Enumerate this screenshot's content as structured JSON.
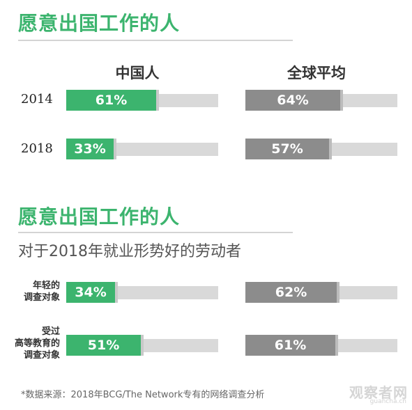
{
  "chart_data": [
    {
      "type": "bar",
      "title": "愿意出国工作的人",
      "series_headers": [
        "中国人",
        "全球平均"
      ],
      "categories": [
        "2014",
        "2018"
      ],
      "series": [
        {
          "name": "中国人",
          "values": [
            61,
            33
          ],
          "labels": [
            "61%",
            "33%"
          ]
        },
        {
          "name": "全球平均",
          "values": [
            64,
            57
          ],
          "labels": [
            "64%",
            "57%"
          ]
        }
      ],
      "ylim": [
        0,
        100
      ]
    },
    {
      "type": "bar",
      "title": "愿意出国工作的人",
      "subtitle": "对于2018年就业形势好的劳动者",
      "categories": [
        "年轻的调查对象",
        "受过高等教育的调查对象"
      ],
      "category_lines": [
        [
          "年轻的",
          "调查对象"
        ],
        [
          "受过",
          "高等教育的",
          "调查对象"
        ]
      ],
      "series": [
        {
          "values": [
            34,
            51
          ],
          "labels": [
            "34%",
            "51%"
          ]
        },
        {
          "values": [
            62,
            61
          ],
          "labels": [
            "62%",
            "61%"
          ]
        }
      ],
      "ylim": [
        0,
        100
      ]
    }
  ],
  "footnote": "*数据来源：2018年BCG/The Network专有的网络调查分析",
  "watermark": {
    "text": "观察者网",
    "url": "guancha.cn"
  },
  "colors": {
    "accent": "#3cb46e",
    "gray": "#8c8c8c",
    "track": "#d9d9d9"
  }
}
